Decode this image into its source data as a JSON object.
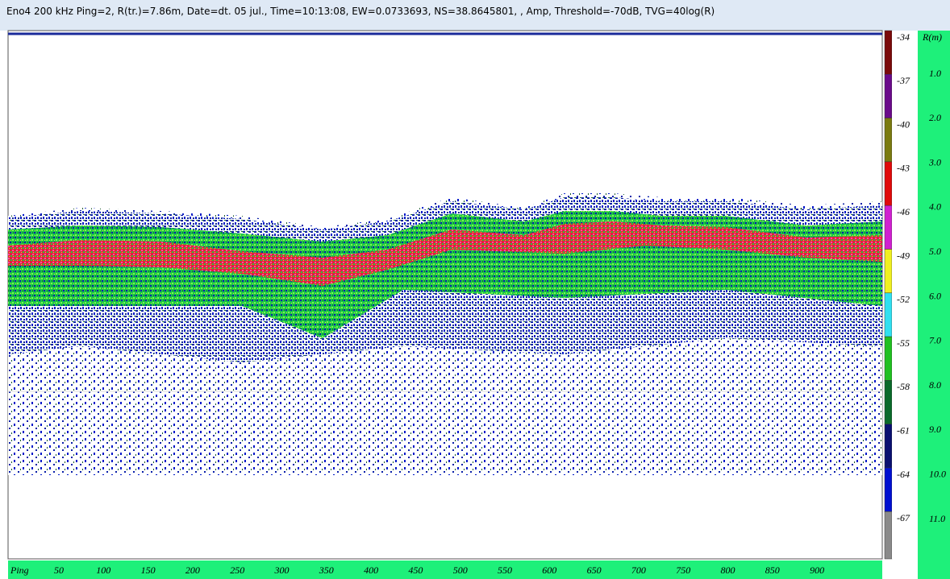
{
  "title_bar": "Eno4  200 kHz  Ping=2,  R(tr.)=7.86m,  Date=dt. 05 jul.,  Time=10:13:08,  EW=0.0733693,  NS=38.8645801, ,  Amp,  Threshold=-70dB,  TVG=40log(R)",
  "color_scale": {
    "labels": [
      "-34",
      "-37",
      "-40",
      "-43",
      "-46",
      "-49",
      "-52",
      "-55",
      "-58",
      "-61",
      "-64",
      "-67"
    ]
  },
  "range_axis": {
    "title": "R(m)",
    "labels": [
      "1.0",
      "2.0",
      "3.0",
      "4.0",
      "5.0",
      "6.0",
      "7.0",
      "8.0",
      "9.0",
      "10.0",
      "11.0"
    ]
  },
  "ping_axis": {
    "title": "Ping",
    "labels": [
      "50",
      "100",
      "150",
      "200",
      "250",
      "300",
      "350",
      "400",
      "450",
      "500",
      "550",
      "600",
      "650",
      "700",
      "750",
      "800",
      "850",
      "900"
    ]
  }
}
